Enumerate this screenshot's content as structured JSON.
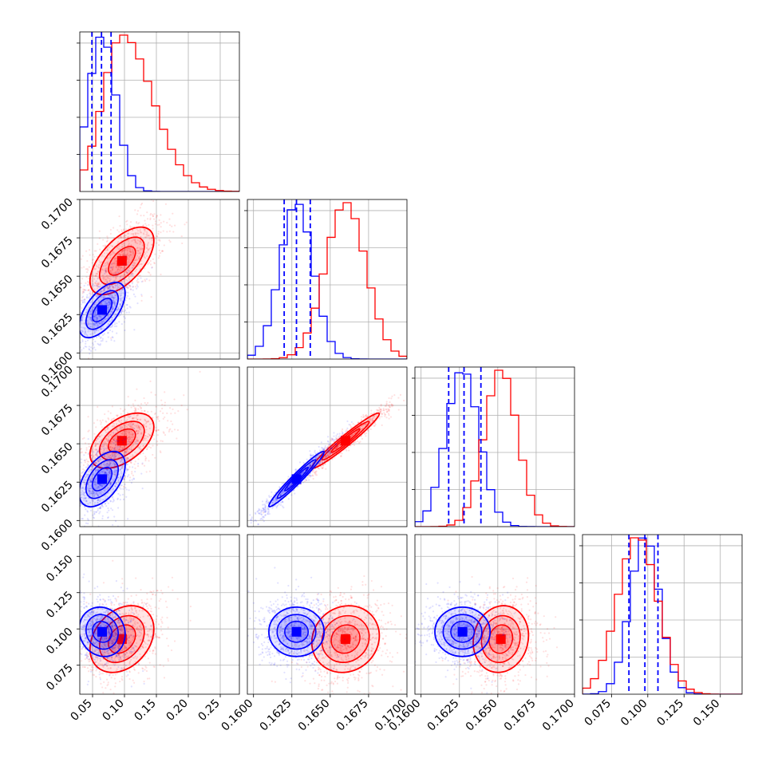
{
  "chart_data": {
    "type": "corner",
    "title": "",
    "grid": true,
    "colors": {
      "series_a": "#0000ff",
      "series_b": "#ff0000"
    },
    "series": [
      {
        "color": "#0000ff",
        "param_means": [
          0.065,
          0.1628,
          0.1627,
          0.098
        ],
        "param_sds": [
          0.018,
          0.0009,
          0.0009,
          0.0085
        ],
        "quantiles_16_50_84": [
          [
            0.049,
            0.064,
            0.079
          ],
          [
            0.162,
            0.1628,
            0.1637
          ],
          [
            0.1618,
            0.1628,
            0.1639
          ],
          [
            0.087,
            0.098,
            0.107
          ]
        ]
      },
      {
        "color": "#ff0000",
        "param_means": [
          0.096,
          0.166,
          0.1652,
          0.093
        ],
        "param_sds": [
          0.025,
          0.0011,
          0.0009,
          0.0115
        ],
        "quantiles_16_50_84": [],
        "hist_values": {}
      }
    ],
    "correlations": {
      "blue": {
        "1-0": 0.6,
        "2-0": 0.5,
        "2-1": 0.97,
        "3-0": -0.1,
        "3-1": 0.0,
        "3-2": 0.0
      },
      "red": {
        "1-0": 0.6,
        "2-0": 0.5,
        "2-1": 0.97,
        "3-0": 0.3,
        "3-1": 0.1,
        "3-2": 0.1
      }
    },
    "axes": [
      {
        "range": [
          0.03,
          0.28
        ],
        "ticks": [
          0.05,
          0.1,
          0.15,
          0.2,
          0.25
        ],
        "tick_labels": [
          "0.05",
          "0.10",
          "0.15",
          "0.20",
          "0.25"
        ]
      },
      {
        "range": [
          0.1596,
          0.17
        ],
        "ticks": [
          0.16,
          0.1625,
          0.165,
          0.1675,
          0.17
        ],
        "tick_labels": [
          "0.1600",
          "0.1625",
          "0.1650",
          "0.1675",
          "0.1700"
        ]
      },
      {
        "range": [
          0.1596,
          0.17
        ],
        "ticks": [
          0.16,
          0.1625,
          0.165,
          0.1675,
          0.17
        ],
        "tick_labels": [
          "0.1600",
          "0.1625",
          "0.1650",
          "0.1675",
          "0.1700"
        ]
      },
      {
        "range": [
          0.055,
          0.165
        ],
        "ticks": [
          0.075,
          0.1,
          0.125,
          0.15
        ],
        "tick_labels": [
          "0.075",
          "0.100",
          "0.125",
          "0.150"
        ]
      }
    ]
  }
}
